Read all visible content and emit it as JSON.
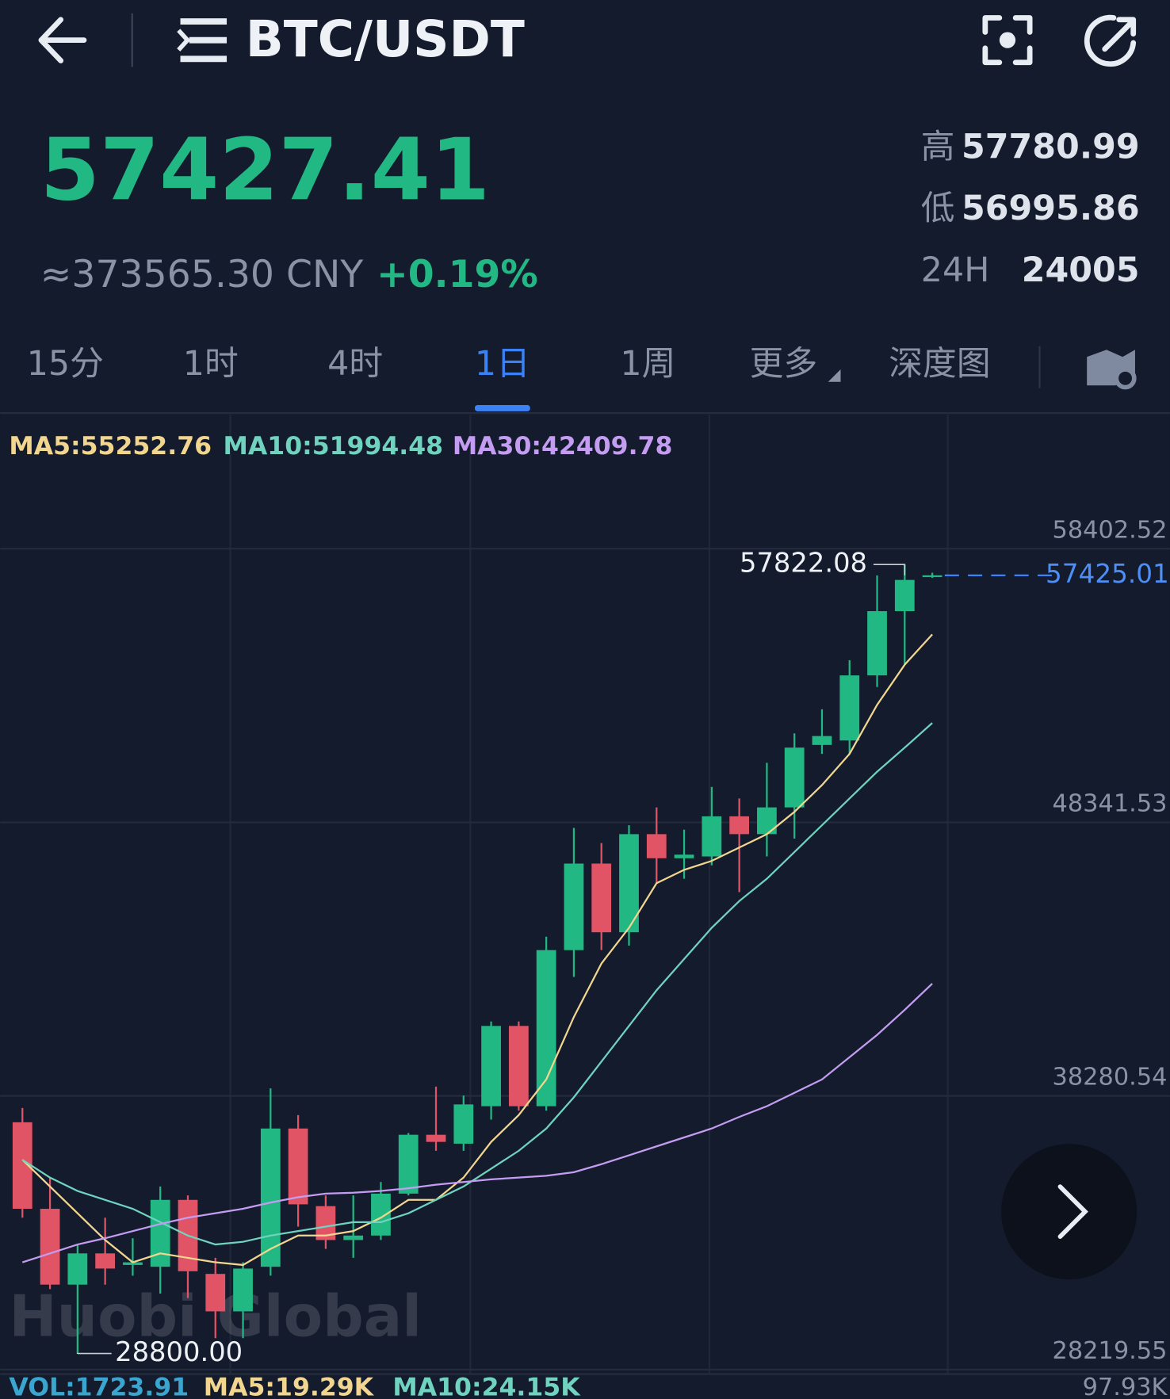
{
  "header": {
    "title": "BTC/USDT",
    "price": "57427.41",
    "cny": "≈373565.30 CNY",
    "change": "+0.19%",
    "stats": [
      {
        "label": "高",
        "value": "57780.99"
      },
      {
        "label": "低",
        "value": "56995.86"
      },
      {
        "label": "24H",
        "value": "24005"
      }
    ]
  },
  "tabs": [
    "15分",
    "1时",
    "4时",
    "1日",
    "1周",
    "更多",
    "深度图"
  ],
  "watermark": "Huobi Global",
  "chart_data": {
    "type": "candlestick",
    "categories": [
      null,
      null,
      null,
      null,
      null,
      null,
      null,
      null,
      null,
      null,
      null,
      null,
      null,
      null,
      null,
      null,
      null,
      null,
      null,
      null,
      null,
      null,
      null,
      null,
      null,
      null,
      null,
      null,
      null,
      null,
      null,
      null,
      null,
      null
    ],
    "open": [
      37313,
      34131,
      31343,
      32491,
      32065,
      31999,
      34459,
      31737,
      30359,
      31999,
      37083,
      34229,
      32983,
      33147,
      34689,
      36853,
      36525,
      37903,
      40855,
      37903,
      43643,
      46825,
      44299,
      47907,
      47021,
      47087,
      48563,
      47907,
      48891,
      51187,
      51351,
      53745,
      56107,
      57380
    ],
    "high": [
      37837,
      35279,
      32819,
      33803,
      33049,
      34951,
      34623,
      32327,
      32163,
      38559,
      37575,
      34623,
      34623,
      35115,
      36919,
      38625,
      38297,
      41019,
      41019,
      44135,
      48137,
      47579,
      48235,
      48891,
      48071,
      49645,
      49219,
      50531,
      51613,
      52499,
      54303,
      57419,
      57822.08,
      57520
    ],
    "low": [
      33803,
      31179,
      28800.0,
      31343,
      31671,
      31015,
      30851,
      29375,
      29375,
      31671,
      33475,
      32655,
      32327,
      32983,
      34623,
      36263,
      36263,
      37411,
      37739,
      37739,
      42659,
      43643,
      43807,
      46103,
      46267,
      46759,
      45775,
      47087,
      47743,
      50859,
      50859,
      53319,
      54139,
      57330
    ],
    "close": [
      34131,
      31343,
      32491,
      31933,
      32163,
      34459,
      31835,
      30359,
      31933,
      37083,
      34295,
      32983,
      33147,
      34689,
      36853,
      36591,
      37969,
      40855,
      37903,
      43643,
      46825,
      44299,
      47907,
      47021,
      47153,
      48563,
      47907,
      48891,
      51089,
      51515,
      53745,
      56107,
      57255,
      57425.01
    ],
    "up_color": "#22b884",
    "down_color": "#e05466",
    "series": [
      {
        "name": "MA5:55252.76",
        "type": "line",
        "color": "#f2d68f",
        "values": [
          35935,
          34951,
          33967,
          32983,
          32163,
          32491,
          32327,
          32163,
          32065,
          32655,
          33147,
          33147,
          33311,
          33803,
          34459,
          34459,
          35279,
          36591,
          37575,
          38887,
          41183,
          43151,
          44463,
          46103,
          46595,
          46923,
          47415,
          47907,
          48727,
          49711,
          50859,
          52663,
          54139,
          55252.76
        ]
      },
      {
        "name": "MA10:51994.48",
        "type": "line",
        "color": "#6fd3bf",
        "values": [
          35935,
          35279,
          34787,
          34459,
          34131,
          33639,
          33147,
          32819,
          32917,
          33147,
          33311,
          33475,
          33639,
          33639,
          33967,
          34459,
          34951,
          35607,
          36263,
          37083,
          38231,
          39543,
          40855,
          42167,
          43315,
          44463,
          45447,
          46267,
          47251,
          48235,
          49219,
          50203,
          51089,
          51994.48
        ]
      },
      {
        "name": "MA30:42409.78",
        "type": "line",
        "color": "#c49df2",
        "values": [
          32163,
          32491,
          32819,
          33049,
          33311,
          33573,
          33803,
          33967,
          34131,
          34361,
          34557,
          34689,
          34721,
          34787,
          34885,
          35017,
          35115,
          35213,
          35279,
          35345,
          35476,
          35771,
          36099,
          36427,
          36755,
          37083,
          37509,
          37903,
          38395,
          38887,
          39707,
          40527,
          41445,
          42409.78
        ]
      }
    ],
    "ylim": [
      28219.55,
      63160
    ],
    "yticks": [
      28219.55,
      38280.54,
      48341.53,
      58402.52
    ],
    "grid": true,
    "max_high_label": "57822.08",
    "min_low_label": "28800.00",
    "last_price_label": "57425.01",
    "volume_legend": [
      "VOL:1723.91",
      "MA5:19.29K",
      "MA10:24.15K"
    ],
    "volume_axis_label": "97.93K"
  }
}
